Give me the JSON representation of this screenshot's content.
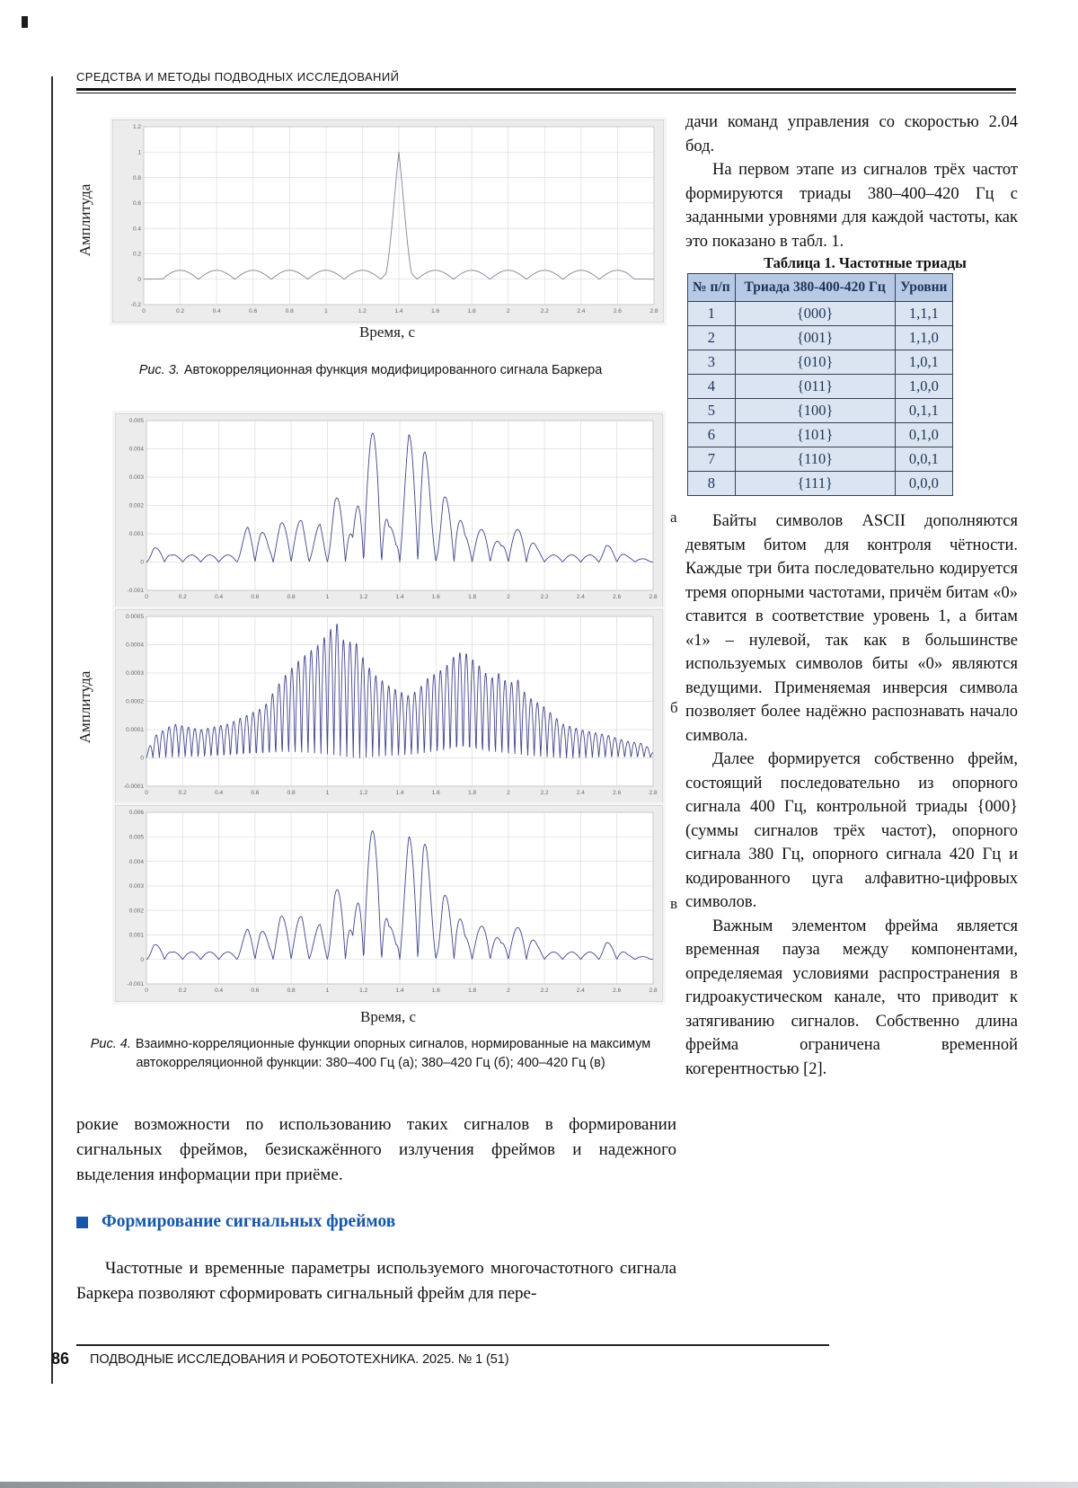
{
  "page": {
    "running_head": "СРЕДСТВА И МЕТОДЫ ПОДВОДНЫХ ИССЛЕДОВАНИЙ",
    "footer": {
      "page_number": "86",
      "journal": "ПОДВОДНЫЕ ИССЛЕДОВАНИЯ И РОБОТОТЕХНИКА. 2025. № 1 (51)"
    }
  },
  "figures": {
    "fig3": {
      "caption_label": "Рис. 3.",
      "caption_text": "Автокорреляционная функция модифицированного сигнала Баркера",
      "xlabel": "Время, с",
      "ylabel": "Амплитуда"
    },
    "fig4": {
      "caption_label": "Рис. 4.",
      "caption_text": "Взаимно-корреляционные функции опорных сигналов, нормированные на максимум автокорреляционной функции: 380–400 Гц (а); 380–420 Гц (б); 400–420 Гц (в)",
      "xlabel": "Время, с",
      "ylabel": "Амплитуда",
      "panel_labels": {
        "a": "а",
        "b": "б",
        "v": "в"
      }
    }
  },
  "chart_data": [
    {
      "id": "fig3-acf",
      "type": "line",
      "title": "Автокорреляционная функция модифицированного сигнала Баркера",
      "xlabel": "Время, с",
      "ylabel": "Амплитуда",
      "xlim": [
        0,
        2.8
      ],
      "ylim": [
        -0.2,
        1.2
      ],
      "xticks": [
        0,
        0.2,
        0.4,
        0.6,
        0.8,
        1,
        1.2,
        1.4,
        1.6,
        1.8,
        2,
        2.2,
        2.4,
        2.6,
        2.8
      ],
      "yticks": [
        -0.2,
        0,
        0.2,
        0.4,
        0.6,
        0.8,
        1,
        1.2
      ],
      "grid": true,
      "line_color": "#7e849c",
      "main_peak": {
        "x": 1.4,
        "y": 1.0
      },
      "sidelobe_level": 0.07,
      "synth": {
        "carrier_freq": 5,
        "carrier_phase": 0.1,
        "envelope": [
          [
            0,
            0
          ],
          [
            0.08,
            0.002
          ],
          [
            0.12,
            0.07
          ],
          [
            1.28,
            0.07
          ],
          [
            1.33,
            0.1
          ],
          [
            1.4,
            1
          ],
          [
            1.47,
            0.1
          ],
          [
            1.52,
            0.07
          ],
          [
            2.66,
            0.07
          ],
          [
            2.72,
            0.002
          ],
          [
            2.8,
            0
          ]
        ]
      }
    },
    {
      "id": "fig4a-ccf-380-400",
      "type": "line",
      "title": "ВКФ опорных сигналов 380–400 Гц (а)",
      "xlabel": "Время, с",
      "ylabel": "Амплитуда",
      "xlim": [
        0,
        2.8
      ],
      "ylim": [
        -0.001,
        0.005
      ],
      "xticks": [
        0,
        0.2,
        0.4,
        0.6,
        0.8,
        1,
        1.2,
        1.4,
        1.6,
        1.8,
        2,
        2.2,
        2.4,
        2.6,
        2.8
      ],
      "yticks": [
        -0.001,
        0,
        0.001,
        0.002,
        0.003,
        0.004,
        0.005
      ],
      "grid": true,
      "line_color": "#41448c",
      "main_peak": {
        "x": 1.27,
        "y": 0.0046
      },
      "synth": {
        "carrier_freq": 10,
        "carrier_phase": 0,
        "envelope": [
          [
            0,
            0.0001
          ],
          [
            0.04,
            0.0005
          ],
          [
            0.09,
            0.0005
          ],
          [
            0.14,
            0.00025
          ],
          [
            0.5,
            0.00025
          ],
          [
            0.56,
            0.0013
          ],
          [
            0.63,
            0.0012
          ],
          [
            0.68,
            0.0007
          ],
          [
            0.74,
            0.0014
          ],
          [
            0.81,
            0.0013
          ],
          [
            0.86,
            0.0015
          ],
          [
            0.91,
            0.0007
          ],
          [
            0.96,
            0.0014
          ],
          [
            1,
            0.0008
          ],
          [
            1.04,
            0.0022
          ],
          [
            1.09,
            0.0025
          ],
          [
            1.14,
            0.0009
          ],
          [
            1.21,
            0.0045
          ],
          [
            1.28,
            0.0046
          ],
          [
            1.34,
            0.0013
          ],
          [
            1.38,
            0.001
          ],
          [
            1.45,
            0.0045
          ],
          [
            1.53,
            0.0046
          ],
          [
            1.58,
            0.002
          ],
          [
            1.61,
            0.001
          ],
          [
            1.64,
            0.0023
          ],
          [
            1.71,
            0.0023
          ],
          [
            1.76,
            0.001
          ],
          [
            1.81,
            0.0011
          ],
          [
            1.89,
            0.0012
          ],
          [
            1.96,
            0.0006
          ],
          [
            2.01,
            0.0011
          ],
          [
            2.09,
            0.0012
          ],
          [
            2.16,
            0.0005
          ],
          [
            2.22,
            0.00025
          ],
          [
            2.5,
            0.00025
          ],
          [
            2.54,
            0.0006
          ],
          [
            2.59,
            0.0005
          ],
          [
            2.66,
            0.0002
          ],
          [
            2.76,
            0.0001
          ],
          [
            2.8,
            0
          ]
        ]
      }
    },
    {
      "id": "fig4b-ccf-380-420",
      "type": "line",
      "title": "ВКФ опорных сигналов 380–420 Гц (б)",
      "xlabel": "Время, с",
      "ylabel": "Амплитуда",
      "xlim": [
        0,
        2.8
      ],
      "ylim": [
        -0.0001,
        0.0005
      ],
      "xticks": [
        0,
        0.2,
        0.4,
        0.6,
        0.8,
        1,
        1.2,
        1.4,
        1.6,
        1.8,
        2,
        2.2,
        2.4,
        2.6,
        2.8
      ],
      "yticks": [
        -0.0001,
        0,
        0.0001,
        0.0002,
        0.0003,
        0.0004,
        0.0005
      ],
      "grid": true,
      "line_color": "#41448c",
      "main_peak": {
        "x": 1.05,
        "y": 0.00048
      },
      "synth": {
        "carrier_freq": 28,
        "carrier_phase": 0,
        "envelope": [
          [
            0,
            2e-05
          ],
          [
            0.05,
            8e-05
          ],
          [
            0.15,
            0.00012
          ],
          [
            0.3,
            0.0001
          ],
          [
            0.45,
            0.00012
          ],
          [
            0.55,
            0.00015
          ],
          [
            0.65,
            0.00018
          ],
          [
            0.75,
            0.00028
          ],
          [
            0.85,
            0.00035
          ],
          [
            0.95,
            0.0004
          ],
          [
            1,
            0.00044
          ],
          [
            1.05,
            0.00048
          ],
          [
            1.1,
            0.0004
          ],
          [
            1.15,
            0.00042
          ],
          [
            1.2,
            0.00035
          ],
          [
            1.25,
            0.0003
          ],
          [
            1.35,
            0.00025
          ],
          [
            1.45,
            0.00022
          ],
          [
            1.5,
            0.00024
          ],
          [
            1.55,
            0.00028
          ],
          [
            1.6,
            0.0003
          ],
          [
            1.65,
            0.00032
          ],
          [
            1.7,
            0.00036
          ],
          [
            1.75,
            0.00038
          ],
          [
            1.8,
            0.00035
          ],
          [
            1.85,
            0.00032
          ],
          [
            1.9,
            0.00028
          ],
          [
            1.95,
            0.0003
          ],
          [
            2,
            0.00026
          ],
          [
            2.05,
            0.00028
          ],
          [
            2.1,
            0.00022
          ],
          [
            2.2,
            0.00018
          ],
          [
            2.3,
            0.00012
          ],
          [
            2.4,
            0.0001
          ],
          [
            2.55,
            8e-05
          ],
          [
            2.65,
            6e-05
          ],
          [
            2.75,
            5e-05
          ],
          [
            2.8,
            2e-05
          ]
        ]
      }
    },
    {
      "id": "fig4v-ccf-400-420",
      "type": "line",
      "title": "ВКФ опорных сигналов 400–420 Гц (в)",
      "xlabel": "Время, с",
      "ylabel": "Амплитуда",
      "xlim": [
        0,
        2.8
      ],
      "ylim": [
        -0.001,
        0.006
      ],
      "xticks": [
        0,
        0.2,
        0.4,
        0.6,
        0.8,
        1,
        1.2,
        1.4,
        1.6,
        1.8,
        2,
        2.2,
        2.4,
        2.6,
        2.8
      ],
      "yticks": [
        -0.001,
        0,
        0.001,
        0.002,
        0.003,
        0.004,
        0.005,
        0.006
      ],
      "grid": true,
      "line_color": "#41448c",
      "main_peak": {
        "x": 1.52,
        "y": 0.0055
      },
      "synth": {
        "carrier_freq": 10,
        "carrier_phase": 0,
        "envelope": [
          [
            0,
            0.0001
          ],
          [
            0.04,
            0.0006
          ],
          [
            0.09,
            0.0006
          ],
          [
            0.14,
            0.0003
          ],
          [
            0.5,
            0.0003
          ],
          [
            0.56,
            0.0013
          ],
          [
            0.63,
            0.0013
          ],
          [
            0.68,
            0.0008
          ],
          [
            0.74,
            0.0018
          ],
          [
            0.81,
            0.0015
          ],
          [
            0.86,
            0.0018
          ],
          [
            0.91,
            0.0008
          ],
          [
            0.96,
            0.0015
          ],
          [
            1,
            0.0009
          ],
          [
            1.04,
            0.0027
          ],
          [
            1.09,
            0.0033
          ],
          [
            1.14,
            0.001
          ],
          [
            1.21,
            0.0053
          ],
          [
            1.28,
            0.0052
          ],
          [
            1.34,
            0.0014
          ],
          [
            1.38,
            0.001
          ],
          [
            1.45,
            0.005
          ],
          [
            1.53,
            0.0055
          ],
          [
            1.58,
            0.0027
          ],
          [
            1.61,
            0.001
          ],
          [
            1.64,
            0.0026
          ],
          [
            1.71,
            0.0027
          ],
          [
            1.76,
            0.001
          ],
          [
            1.81,
            0.0012
          ],
          [
            1.89,
            0.0015
          ],
          [
            1.96,
            0.0007
          ],
          [
            2.01,
            0.0012
          ],
          [
            2.09,
            0.0014
          ],
          [
            2.16,
            0.0006
          ],
          [
            2.22,
            0.0003
          ],
          [
            2.5,
            0.0003
          ],
          [
            2.54,
            0.0007
          ],
          [
            2.59,
            0.0006
          ],
          [
            2.66,
            0.0002
          ],
          [
            2.76,
            0.0001
          ],
          [
            2.8,
            0
          ]
        ]
      }
    }
  ],
  "table": {
    "title": "Таблица 1. Частотные триады",
    "columns": [
      "№ п/п",
      "Триада 380-400-420 Гц",
      "Уровни"
    ],
    "rows": [
      [
        "1",
        "{000}",
        "1,1,1"
      ],
      [
        "2",
        "{001}",
        "1,1,0"
      ],
      [
        "3",
        "{010}",
        "1,0,1"
      ],
      [
        "4",
        "{011}",
        "1,0,0"
      ],
      [
        "5",
        "{100}",
        "0,1,1"
      ],
      [
        "6",
        "{101}",
        "0,1,0"
      ],
      [
        "7",
        "{110}",
        "0,0,1"
      ],
      [
        "8",
        "{111}",
        "0,0,0"
      ]
    ]
  },
  "left_column": {
    "paragraph1": "рокие возможности по использованию таких сигналов в формировании сигнальных фреймов, безискажённого излучения фреймов и надежного выделения информации при приёме.",
    "section_heading": "Формирование сигнальных фреймов",
    "paragraph2": "Частотные и временные параметры используемого многочастотного сигнала Баркера позволяют сформировать сигнальный фрейм для пере-"
  },
  "right_column": {
    "paragraphs": [
      "дачи команд управления со скоростью 2.04 бод.",
      "На первом этапе из сигналов трёх частот формируются триады 380–400–420 Гц с заданными уровнями для каждой частоты, как это показано в табл. 1.",
      "Байты символов ASCII дополняются девятым битом для контроля чётности. Каждые три бита последовательно кодируется тремя опорными частотами, причём битам «0» ставится в соответствие уровень 1, а битам «1» – нулевой, так как в большинстве используемых символов биты «0» являются ведущими. Применяемая инверсия символа позволяет более надёжно распознавать начало символа.",
      "Далее формируется собственно фрейм, состоящий последовательно из опорного сигнала 400 Гц, контрольной триады {000} (суммы сигналов трёх частот), опорного сигнала 380 Гц, опорного сигнала 420 Гц и кодированного цуга алфавитно-цифровых символов.",
      "Важным элементом фрейма является временная пауза между компонентами, определяемая условиями распространения в гидроакустическом канале, что приводит к затягиванию сигналов. Собственно длина фрейма ограничена временной когерентностью [2]."
    ]
  },
  "colors": {
    "accent_blue": "#1657a8",
    "table_header_bg": "#b7c9e5",
    "table_row_bg": "#dbe5f2",
    "table_text": "#1c3557",
    "curve_fig3": "#7e849c",
    "curve_fig4": "#41448c"
  }
}
